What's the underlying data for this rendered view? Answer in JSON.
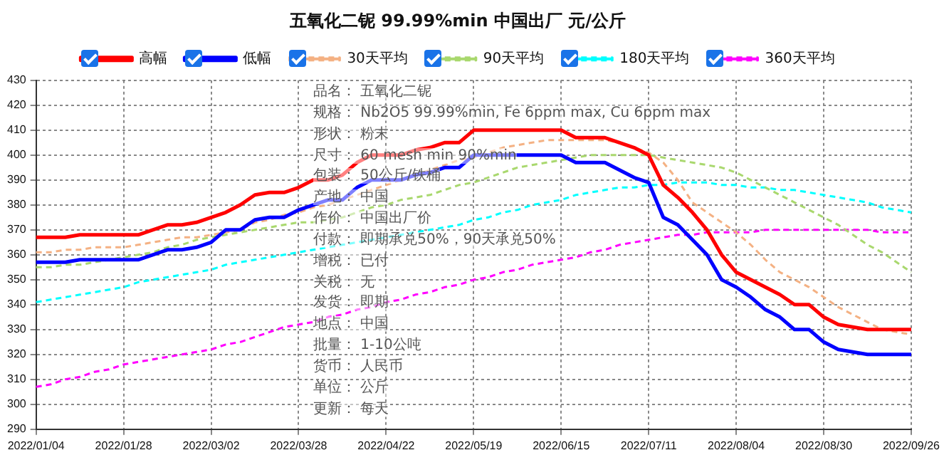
{
  "chart_data": {
    "type": "line",
    "title": "五氧化二铌 99.99%min 中国出厂 元/公斤",
    "categories": [
      "2022/01/04",
      null,
      null,
      null,
      null,
      null,
      "2022/01/28",
      null,
      null,
      null,
      null,
      null,
      "2022/03/02",
      null,
      null,
      null,
      null,
      null,
      "2022/03/28",
      null,
      null,
      null,
      null,
      null,
      "2022/04/22",
      null,
      null,
      null,
      null,
      null,
      "2022/05/19",
      null,
      null,
      null,
      null,
      null,
      "2022/06/15",
      null,
      null,
      null,
      null,
      null,
      "2022/07/11",
      null,
      null,
      null,
      null,
      null,
      "2022/08/04",
      null,
      null,
      null,
      null,
      null,
      "2022/08/30",
      null,
      null,
      null,
      null,
      null,
      "2022/09/26"
    ],
    "ylim": [
      290,
      430
    ],
    "yticks": [
      290,
      300,
      310,
      320,
      330,
      340,
      350,
      360,
      370,
      380,
      390,
      400,
      410,
      420,
      430
    ],
    "grid": true,
    "legend": "top",
    "marker": "none",
    "series": [
      {
        "name": "高幅",
        "color": "#ff0000",
        "line_style": "solid",
        "values": [
          367,
          367,
          367,
          368,
          368,
          368,
          368,
          368,
          370,
          372,
          372,
          373,
          375,
          377,
          380,
          384,
          385,
          385,
          387,
          390,
          390,
          392,
          397,
          400,
          400,
          400,
          402,
          403,
          405,
          405,
          410,
          410,
          410,
          410,
          410,
          410,
          410,
          407,
          407,
          407,
          405,
          403,
          400,
          388,
          383,
          377,
          370,
          360,
          353,
          350,
          347,
          344,
          340,
          340,
          335,
          332,
          331,
          330,
          330,
          330,
          330
        ]
      },
      {
        "name": "低幅",
        "color": "#0000ff",
        "line_style": "solid",
        "values": [
          357,
          357,
          357,
          358,
          358,
          358,
          358,
          358,
          360,
          362,
          362,
          363,
          365,
          370,
          370,
          374,
          375,
          375,
          378,
          380,
          382,
          382,
          387,
          390,
          390,
          390,
          392,
          393,
          395,
          395,
          400,
          400,
          400,
          400,
          400,
          400,
          400,
          397,
          397,
          397,
          394,
          391,
          389,
          375,
          372,
          366,
          360,
          350,
          347,
          343,
          338,
          335,
          330,
          330,
          325,
          322,
          321,
          320,
          320,
          320,
          320
        ]
      },
      {
        "name": "30天平均",
        "color": "#f4b183",
        "line_style": "dashed",
        "values": [
          361,
          361,
          362,
          362,
          363,
          363,
          363,
          364,
          365,
          366,
          367,
          367,
          368,
          369,
          370,
          373,
          374,
          376,
          377,
          379,
          380,
          382,
          384,
          386,
          388,
          390,
          392,
          394,
          396,
          398,
          399,
          401,
          403,
          404,
          405,
          406,
          406,
          406,
          406,
          406,
          405,
          403,
          401,
          397,
          390,
          381,
          377,
          373,
          369,
          364,
          358,
          353,
          350,
          347,
          343,
          339,
          336,
          333,
          330,
          329,
          328
        ]
      },
      {
        "name": "90天平均",
        "color": "#a9d86e",
        "line_style": "dashed",
        "values": [
          355,
          355,
          356,
          356,
          357,
          358,
          359,
          360,
          361,
          363,
          364,
          366,
          367,
          368,
          369,
          370,
          371,
          372,
          373,
          373,
          374,
          375,
          377,
          379,
          380,
          382,
          383,
          384,
          386,
          388,
          389,
          391,
          393,
          395,
          396,
          397,
          398,
          399,
          400,
          400,
          400,
          400,
          400,
          399,
          398,
          397,
          396,
          395,
          393,
          390,
          387,
          384,
          381,
          378,
          375,
          372,
          368,
          364,
          361,
          357,
          353
        ]
      },
      {
        "name": "180天平均",
        "color": "#00ffff",
        "line_style": "dashed",
        "values": [
          341,
          342,
          343,
          344,
          345,
          346,
          347,
          349,
          350,
          351,
          352,
          353,
          354,
          356,
          357,
          358,
          359,
          360,
          361,
          362,
          363,
          364,
          365,
          366,
          367,
          368,
          369,
          370,
          371,
          372,
          374,
          375,
          377,
          378,
          380,
          381,
          382,
          384,
          385,
          386,
          387,
          387,
          388,
          388,
          389,
          389,
          389,
          388,
          388,
          387,
          387,
          386,
          386,
          385,
          384,
          383,
          382,
          381,
          379,
          378,
          377
        ]
      },
      {
        "name": "360天平均",
        "color": "#ff00ff",
        "line_style": "dashed",
        "values": [
          307,
          308,
          310,
          311,
          313,
          314,
          316,
          317,
          318,
          319,
          320,
          321,
          322,
          324,
          325,
          327,
          329,
          331,
          332,
          333,
          335,
          336,
          338,
          339,
          341,
          342,
          344,
          345,
          347,
          348,
          350,
          351,
          353,
          354,
          356,
          357,
          358,
          359,
          361,
          362,
          364,
          365,
          366,
          367,
          368,
          368,
          369,
          369,
          369,
          369,
          370,
          370,
          370,
          370,
          370,
          370,
          370,
          370,
          369,
          369,
          369
        ]
      }
    ],
    "annotations": [
      "品名： 五氧化二铌",
      "规格： Nb2O5 99.99%min, Fe 6ppm max, Cu 6ppm max",
      "形状： 粉末",
      "尺寸： 60 mesh min 90%min",
      "包装： 50公斤/铁桶",
      "产地： 中国",
      "作价： 中国出厂价",
      "付款： 即期承兑50%，90天承兑50%",
      "增税： 已付",
      "关税： 无",
      "发货： 即期",
      "地点： 中国",
      "批量： 1-10公吨",
      "货币： 人民币",
      "单位： 公斤",
      "更新： 每天"
    ]
  }
}
